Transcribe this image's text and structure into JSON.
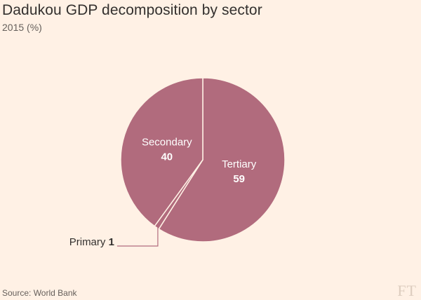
{
  "header": {
    "title": "Dadukou GDP decomposition by sector",
    "subtitle": "2015 (%)"
  },
  "footer": {
    "source": "Source: World Bank",
    "logo": "FT"
  },
  "colors": {
    "background": "#fff1e5",
    "slice": "#b16b7d",
    "slice_border": "#fff1e5",
    "label_inside": "#ffffff",
    "label_outside": "#33302e",
    "leader_line": "#b16b7d"
  },
  "chart_data": {
    "type": "pie",
    "title": "Dadukou GDP decomposition by sector",
    "subtitle": "2015 (%)",
    "slices": [
      {
        "label": "Tertiary",
        "value": 59
      },
      {
        "label": "Primary",
        "value": 1
      },
      {
        "label": "Secondary",
        "value": 40
      }
    ],
    "start_angle": "12 o'clock",
    "direction": "clockwise",
    "legend": "none"
  }
}
